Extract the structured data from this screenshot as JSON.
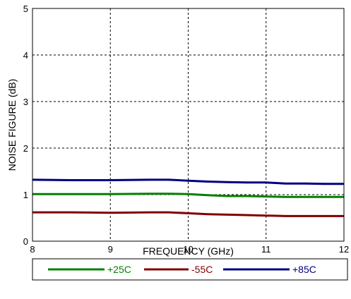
{
  "chart_data": {
    "type": "line",
    "xlabel": "FREQUENCY (GHz)",
    "ylabel": "NOISE FIGURE (dB)",
    "xlim": [
      8,
      12
    ],
    "ylim": [
      0,
      5
    ],
    "xticks": [
      "8",
      "9",
      "10",
      "11",
      "12"
    ],
    "yticks": [
      "0",
      "1",
      "2",
      "3",
      "4",
      "5"
    ],
    "grid": true,
    "legend_position": "bottom",
    "series": [
      {
        "name": "+25C",
        "color": "#008000",
        "x": [
          8.0,
          8.5,
          9.0,
          9.5,
          9.75,
          10.0,
          10.25,
          10.5,
          10.75,
          11.0,
          11.25,
          11.5,
          11.75,
          12.0
        ],
        "y": [
          1.01,
          1.01,
          1.01,
          1.02,
          1.02,
          1.01,
          0.99,
          0.97,
          0.97,
          0.96,
          0.95,
          0.95,
          0.95,
          0.95
        ]
      },
      {
        "name": "-55C",
        "color": "#800000",
        "x": [
          8.0,
          8.5,
          9.0,
          9.5,
          9.75,
          10.0,
          10.25,
          10.5,
          10.75,
          11.0,
          11.25,
          11.5,
          11.75,
          12.0
        ],
        "y": [
          0.62,
          0.62,
          0.61,
          0.62,
          0.62,
          0.6,
          0.58,
          0.57,
          0.56,
          0.55,
          0.54,
          0.54,
          0.54,
          0.54
        ]
      },
      {
        "name": "+85C",
        "color": "#000080",
        "x": [
          8.0,
          8.5,
          9.0,
          9.5,
          9.75,
          10.0,
          10.25,
          10.5,
          10.75,
          11.0,
          11.25,
          11.5,
          11.75,
          12.0
        ],
        "y": [
          1.32,
          1.31,
          1.31,
          1.32,
          1.32,
          1.3,
          1.28,
          1.27,
          1.26,
          1.26,
          1.24,
          1.24,
          1.23,
          1.23
        ]
      }
    ]
  }
}
